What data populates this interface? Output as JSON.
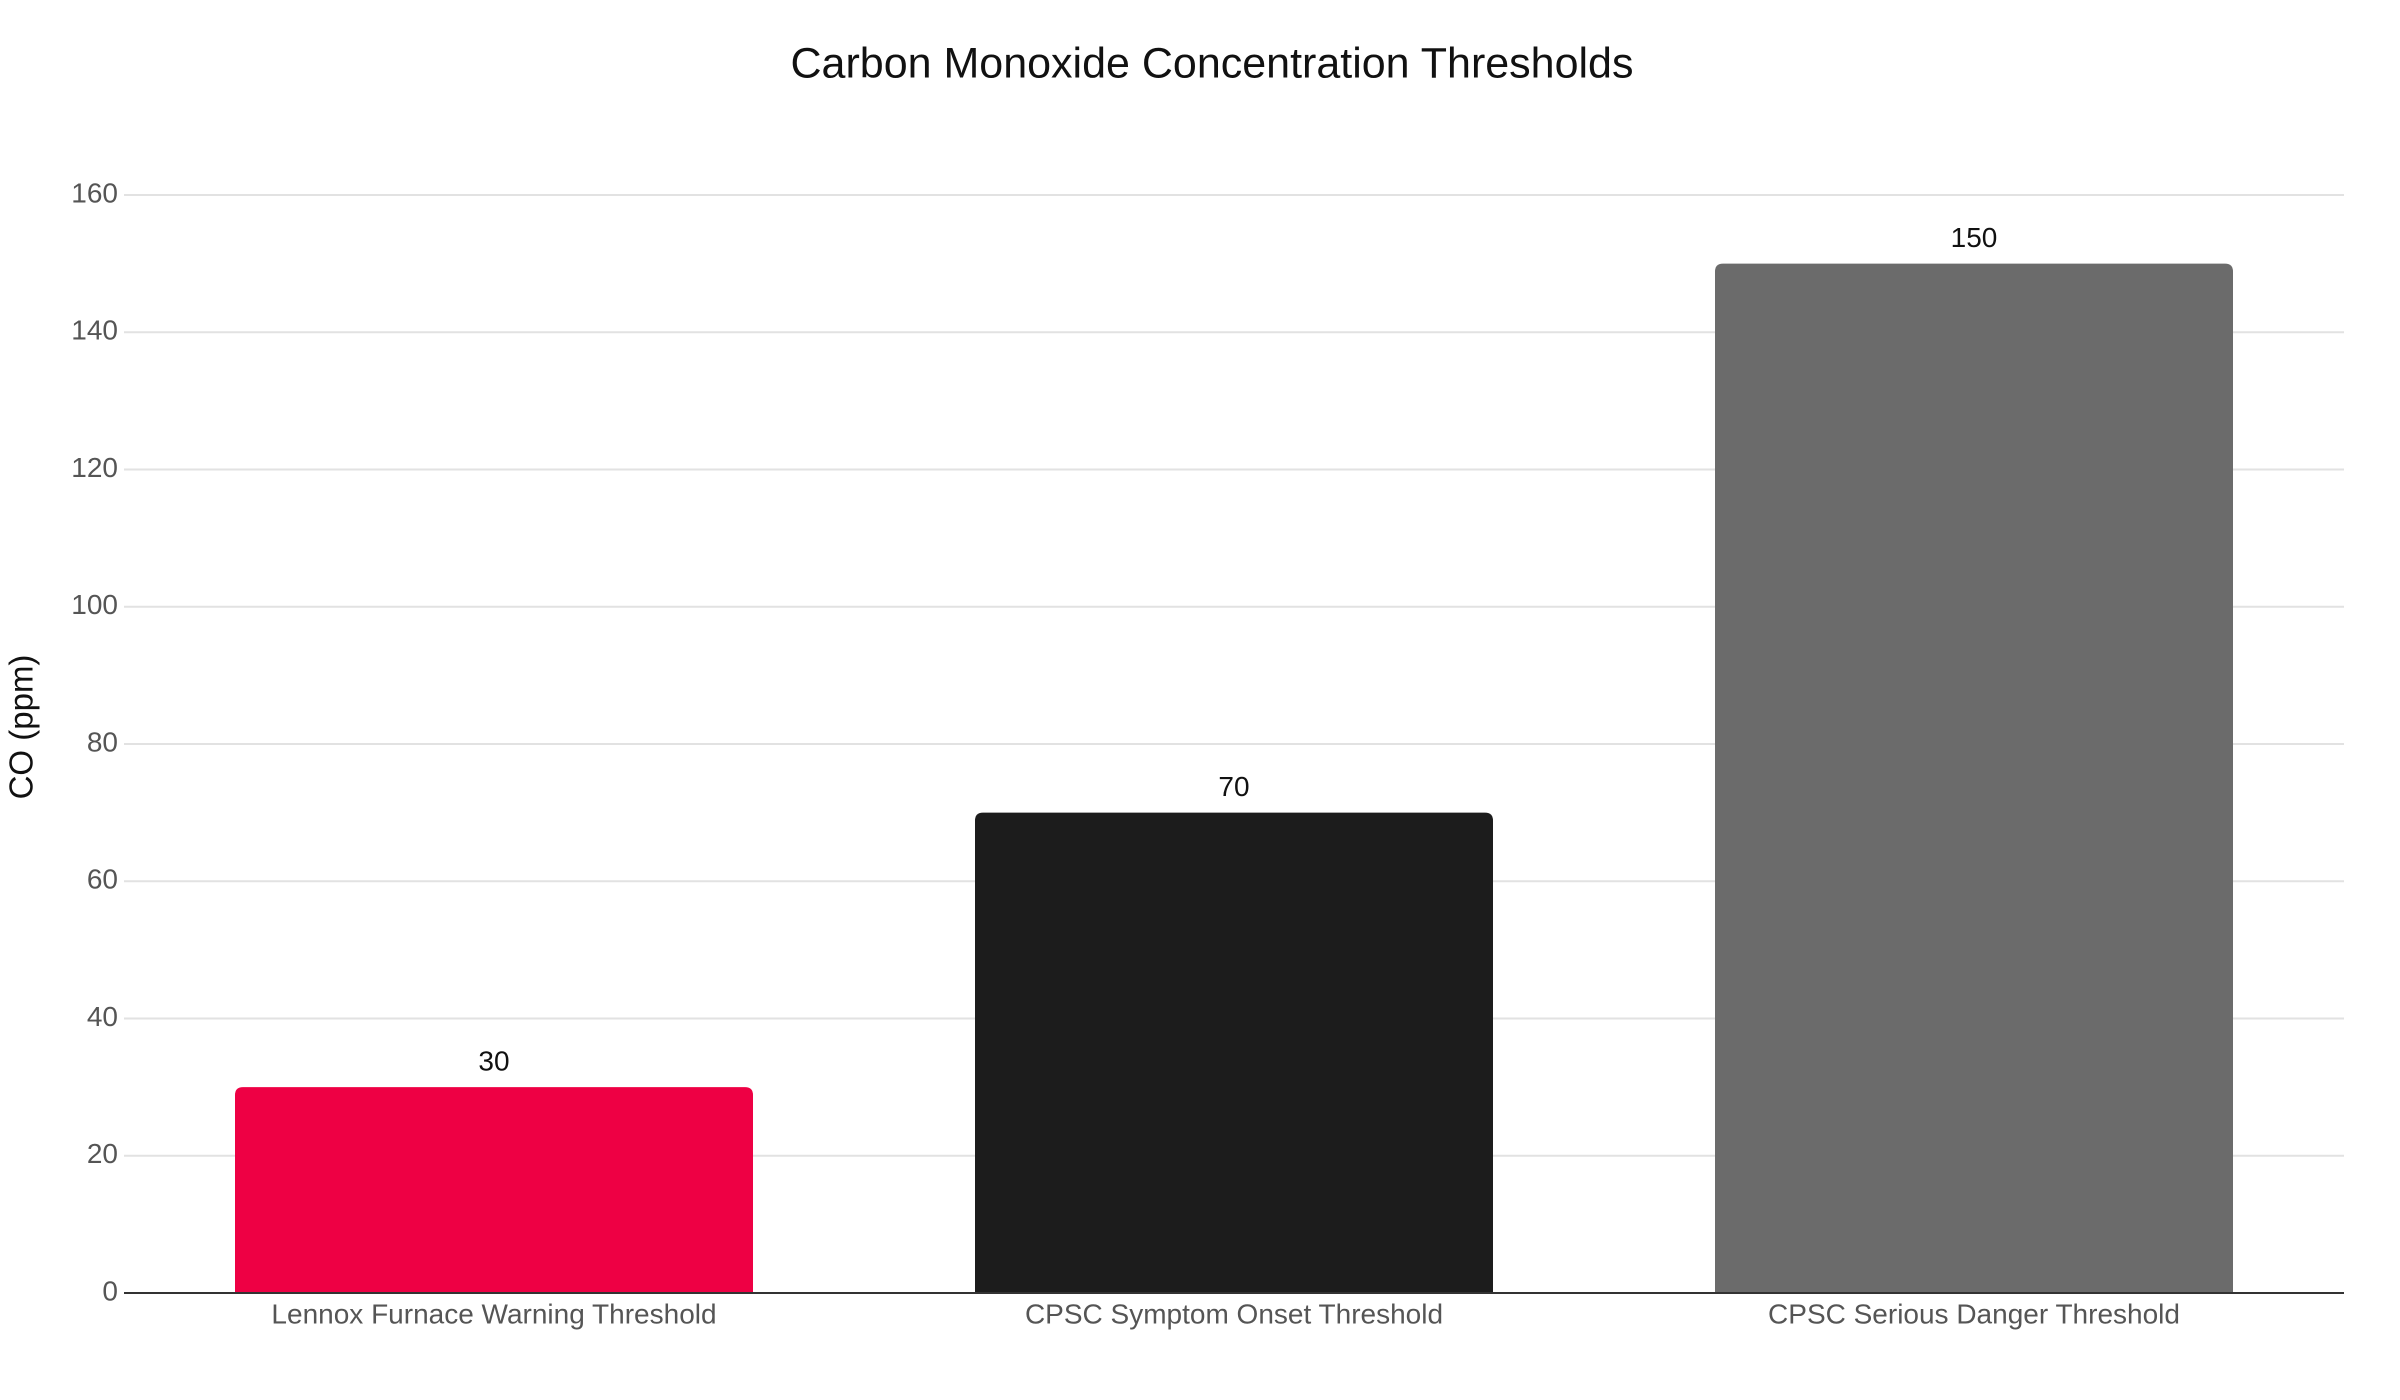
{
  "chart_data": {
    "type": "bar",
    "title": "Carbon Monoxide Concentration Thresholds",
    "y_label": "CO (ppm)",
    "categories": [
      "Lennox Furnace Warning Threshold",
      "CPSC Symptom Onset Threshold",
      "CPSC Serious Danger Threshold"
    ],
    "values": [
      30,
      70,
      150
    ],
    "colors": [
      "#ee0044",
      "#1c1c1c",
      "#6b6b6b"
    ],
    "ylim": [
      0,
      160
    ],
    "yticks": [
      0,
      20,
      40,
      60,
      80,
      100,
      120,
      140,
      160
    ],
    "grid": true
  }
}
